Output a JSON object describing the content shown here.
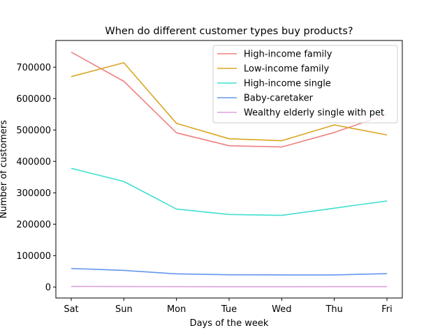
{
  "chart_data": {
    "type": "line",
    "title": "When do different customer types buy products?",
    "xlabel": "Days of the week",
    "ylabel": "Number of customers",
    "categories": [
      "Sat",
      "Sun",
      "Mon",
      "Tue",
      "Wed",
      "Thu",
      "Fri"
    ],
    "yticks": [
      0,
      100000,
      200000,
      300000,
      400000,
      500000,
      600000,
      700000
    ],
    "ytick_labels": [
      "0",
      "100000",
      "200000",
      "300000",
      "400000",
      "500000",
      "600000",
      "700000"
    ],
    "ylim": [
      -35000,
      785000
    ],
    "grid": false,
    "legend_position": "top-right",
    "series": [
      {
        "name": "High-income family",
        "color": "#f08080",
        "values": [
          748000,
          655000,
          491000,
          450000,
          446000,
          492000,
          550000
        ]
      },
      {
        "name": "Low-income family",
        "color": "#daa520",
        "values": [
          670000,
          714000,
          521000,
          472000,
          466000,
          516000,
          484000
        ]
      },
      {
        "name": "High-income single",
        "color": "#40e0d0",
        "values": [
          378000,
          336000,
          248000,
          231000,
          228000,
          251000,
          274000
        ]
      },
      {
        "name": "Baby-caretaker",
        "color": "#6495ed",
        "values": [
          59000,
          53000,
          42000,
          39000,
          38500,
          38500,
          42500
        ]
      },
      {
        "name": "Wealthy elderly single with pet",
        "color": "#dda0dd",
        "values": [
          1800,
          1500,
          1200,
          1100,
          1000,
          1200,
          1300
        ]
      }
    ]
  }
}
